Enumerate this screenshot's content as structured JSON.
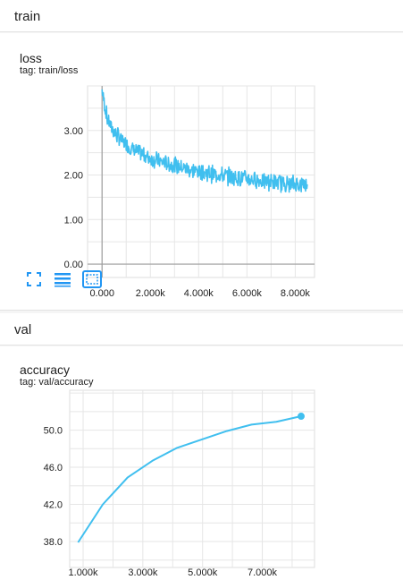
{
  "sections": [
    {
      "name": "train",
      "card": {
        "title": "loss",
        "tag": "tag: train/loss"
      }
    },
    {
      "name": "val",
      "card": {
        "title": "accuracy",
        "tag": "tag: val/accuracy"
      }
    }
  ],
  "toolbar": {
    "icons": [
      "fit-domain-icon",
      "toggle-log-scale-icon",
      "expand-chart-icon"
    ],
    "color": "#2196f3"
  },
  "chart_data": [
    {
      "type": "line",
      "title": "loss",
      "tag": "tag: train/loss",
      "color": "#40bfef",
      "xlim": [
        -600,
        8800
      ],
      "ylim": [
        -0.3,
        4.0
      ],
      "x_ticks": [
        0,
        2000,
        4000,
        6000,
        8000
      ],
      "x_tick_labels": [
        "0.000",
        "2.000k",
        "4.000k",
        "6.000k",
        "8.000k"
      ],
      "y_ticks": [
        0,
        1,
        2,
        3
      ],
      "y_tick_labels": [
        "0.00",
        "1.00",
        "2.00",
        "3.00"
      ],
      "grid": true,
      "series": [
        {
          "x": [
            0,
            100,
            200,
            400,
            600,
            800,
            1000,
            1300,
            1600,
            2000,
            2400,
            2800,
            3200,
            3600,
            4000,
            4500,
            5000,
            5500,
            6000,
            6500,
            7000,
            7500,
            8000,
            8500
          ],
          "y": [
            3.9,
            3.6,
            3.3,
            3.05,
            2.9,
            2.78,
            2.68,
            2.57,
            2.48,
            2.38,
            2.3,
            2.24,
            2.18,
            2.13,
            2.08,
            2.03,
            1.99,
            1.95,
            1.92,
            1.88,
            1.85,
            1.82,
            1.8,
            1.79
          ]
        }
      ]
    },
    {
      "type": "line",
      "title": "accuracy",
      "tag": "tag: val/accuracy",
      "color": "#40bfef",
      "xlim": [
        550,
        8750
      ],
      "ylim": [
        35.2,
        54.3
      ],
      "x_ticks": [
        1000,
        3000,
        5000,
        7000
      ],
      "x_tick_labels": [
        "1.000k",
        "3.000k",
        "5.000k",
        "7.000k"
      ],
      "y_ticks": [
        38,
        42,
        46,
        50
      ],
      "y_tick_labels": [
        "38.0",
        "42.0",
        "46.0",
        "50.0"
      ],
      "grid": true,
      "series": [
        {
          "x": [
            830,
            1660,
            2490,
            3320,
            4150,
            4980,
            5810,
            6640,
            7470,
            8300
          ],
          "y": [
            37.9,
            42.0,
            44.9,
            46.7,
            48.1,
            49.0,
            49.9,
            50.6,
            50.9,
            51.5
          ]
        }
      ]
    }
  ]
}
